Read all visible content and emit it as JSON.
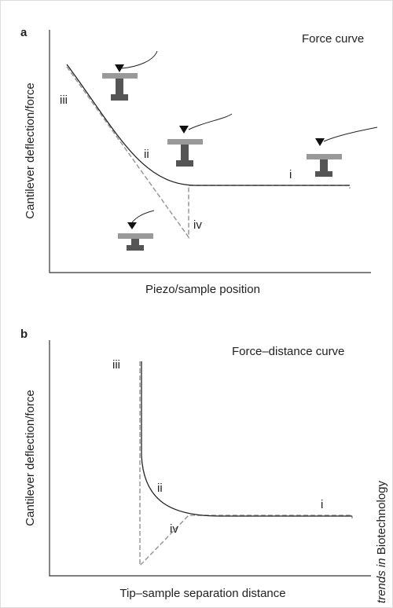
{
  "panel_a": {
    "label": "a",
    "title": "Force curve",
    "y_label": "Cantilever deflection/force",
    "x_label": "Piezo/sample position",
    "stages": [
      "iii",
      "ii",
      "i",
      "iv"
    ]
  },
  "panel_b": {
    "label": "b",
    "title": "Force–distance curve",
    "y_label": "Cantilever deflection/force",
    "x_label": "Tip–sample separation distance",
    "stages": [
      "iii",
      "ii",
      "i",
      "iv"
    ]
  },
  "credit": {
    "prefix": "trends in",
    "journal": "Biotechnology"
  }
}
